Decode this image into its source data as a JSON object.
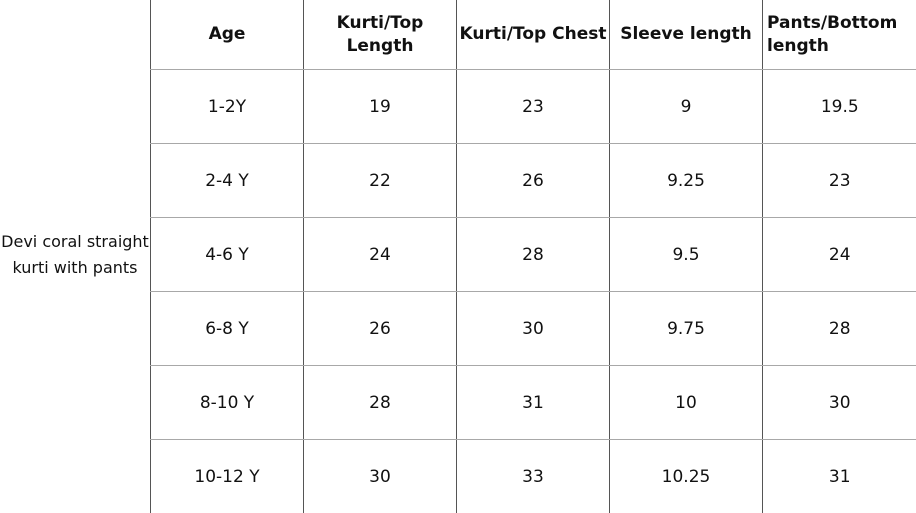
{
  "product_label": "Devi coral straight kurti with pants",
  "headers": [
    "Age",
    "Kurti/Top Length",
    "Kurti/Top Chest",
    "Sleeve length",
    "Pants/Bottom length"
  ],
  "rows": [
    [
      "1-2Y",
      "19",
      "23",
      "9",
      "19.5"
    ],
    [
      "2-4 Y",
      "22",
      "26",
      "9.25",
      "23"
    ],
    [
      "4-6 Y",
      "24",
      "28",
      "9.5",
      "24"
    ],
    [
      "6-8 Y",
      "26",
      "30",
      "9.75",
      "28"
    ],
    [
      "8-10 Y",
      "28",
      "31",
      "10",
      "30"
    ],
    [
      "10-12 Y",
      "30",
      "33",
      "10.25",
      "31"
    ]
  ]
}
